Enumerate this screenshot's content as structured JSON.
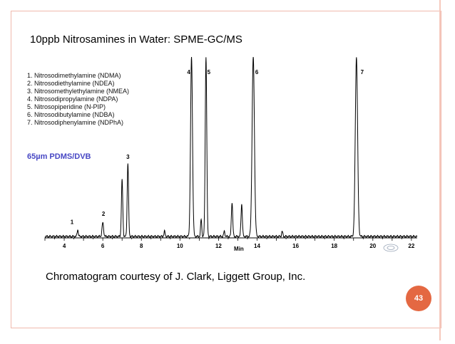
{
  "slide": {
    "title": "10ppb Nitrosamines in Water: SPME-GC/MS",
    "caption": "Chromatogram courtesy of J. Clark, Liggett Group, Inc.",
    "page_number": "43",
    "accent_color": "#e46842",
    "border_color": "#f0b9ad"
  },
  "chart_data": {
    "type": "line",
    "x_unit_label": "Min",
    "xlim": [
      3.0,
      22.3
    ],
    "x_ticks": [
      "4",
      "6",
      "8",
      "10",
      "12",
      "14",
      "16",
      "18",
      "20",
      "22"
    ],
    "annotation": "65µm PDMS/DVB",
    "legend": [
      "1.  Nitrosodimethylamine (NDMA)",
      "2.  Nitrosodiethylamine (NDEA)",
      "3.  Nitrosomethylethylamine (NMEA)",
      "4.  Nitrosodipropylamine (NDPA)",
      "5.  Nitrosopiperidine (N-PIP)",
      "6.  Nitrosodibutylamine (NDBA)",
      "7.  Nitrosodiphenylamine (NDPhA)"
    ],
    "peaks": [
      {
        "label": "1",
        "rt": 4.7,
        "height": 0.04,
        "width": 0.03
      },
      {
        "label": "2",
        "rt": 6.0,
        "height": 0.08,
        "width": 0.04
      },
      {
        "label": "",
        "rt": 7.0,
        "height": 0.33,
        "width": 0.035
      },
      {
        "label": "3",
        "rt": 7.3,
        "height": 0.43,
        "width": 0.035
      },
      {
        "label": "",
        "rt": 9.2,
        "height": 0.03,
        "width": 0.03
      },
      {
        "label": "4",
        "rt": 10.6,
        "height": 1.05,
        "width": 0.05
      },
      {
        "label": "",
        "rt": 11.1,
        "height": 0.1,
        "width": 0.03
      },
      {
        "label": "5",
        "rt": 11.35,
        "height": 1.05,
        "width": 0.04
      },
      {
        "label": "",
        "rt": 12.3,
        "height": 0.03,
        "width": 0.03
      },
      {
        "label": "",
        "rt": 12.7,
        "height": 0.2,
        "width": 0.035
      },
      {
        "label": "",
        "rt": 13.2,
        "height": 0.19,
        "width": 0.035
      },
      {
        "label": "6",
        "rt": 13.8,
        "height": 1.05,
        "width": 0.06
      },
      {
        "label": "",
        "rt": 15.3,
        "height": 0.03,
        "width": 0.03
      },
      {
        "label": "7",
        "rt": 19.15,
        "height": 1.05,
        "width": 0.06
      }
    ]
  }
}
